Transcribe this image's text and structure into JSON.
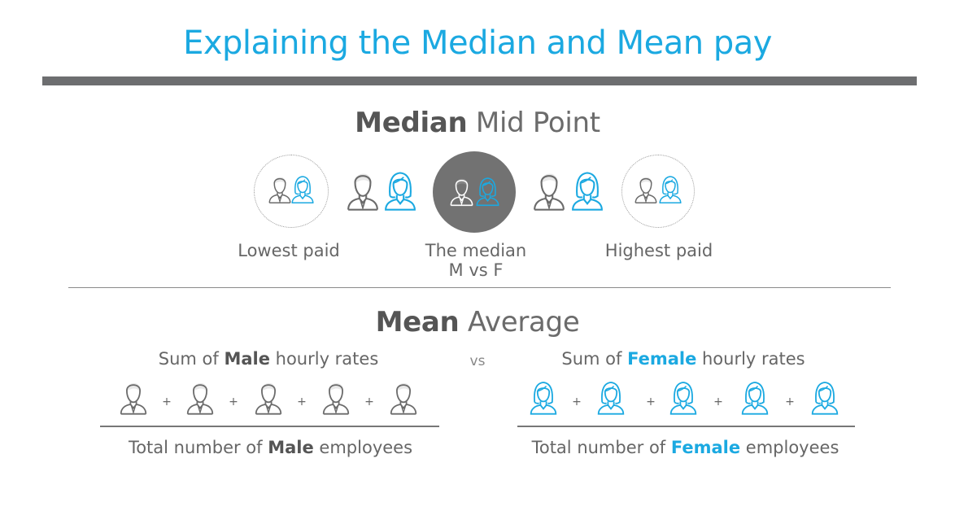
{
  "title": "Explaining the Median and Mean pay",
  "median": {
    "heading_bold": "Median",
    "heading_rest": " Mid Point",
    "labels": {
      "lowest": "Lowest paid",
      "median_line1": "The median",
      "median_line2": "M vs F",
      "highest": "Highest paid"
    }
  },
  "mean": {
    "heading_bold": "Mean",
    "heading_rest": " Average",
    "male": {
      "sum_prefix": "Sum of ",
      "sum_bold": "Male",
      "sum_suffix": " hourly rates",
      "total_prefix": "Total number of ",
      "total_bold": "Male",
      "total_suffix": " employees"
    },
    "vs": "vs",
    "female": {
      "sum_prefix": "Sum of ",
      "sum_bold": "Female",
      "sum_suffix": " hourly rates",
      "total_prefix": "Total number of ",
      "total_bold": "Female",
      "total_suffix": " employees"
    },
    "plus_sign": "+"
  },
  "icons": {
    "male": "male-person-icon",
    "female": "female-person-icon"
  },
  "colors": {
    "accent_blue": "#1ba9e1",
    "gray_text": "#5f5f5f",
    "bar_gray": "#6d6e70",
    "median_circle": "#727272",
    "male_stroke": "#6b6b6b"
  }
}
